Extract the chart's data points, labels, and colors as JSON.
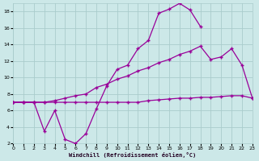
{
  "xlabel": "Windchill (Refroidissement éolien,°C)",
  "bg_color": "#cce8e8",
  "line_color": "#990099",
  "grid_color": "#aacccc",
  "xlim": [
    0,
    23
  ],
  "ylim": [
    2,
    19
  ],
  "xticks": [
    0,
    1,
    2,
    3,
    4,
    5,
    6,
    7,
    8,
    9,
    10,
    11,
    12,
    13,
    14,
    15,
    16,
    17,
    18,
    19,
    20,
    21,
    22,
    23
  ],
  "yticks": [
    2,
    4,
    6,
    8,
    10,
    12,
    14,
    16,
    18
  ],
  "line_upper_x": [
    0,
    1,
    2,
    3,
    4,
    5,
    6,
    7,
    8,
    9,
    10,
    11,
    12,
    13,
    14,
    15,
    16,
    17,
    18
  ],
  "line_upper_y": [
    7.0,
    7.0,
    7.0,
    3.5,
    6.0,
    2.5,
    2.0,
    3.2,
    6.2,
    9.0,
    11.0,
    11.5,
    13.5,
    14.5,
    17.8,
    18.3,
    19.0,
    18.2,
    16.2
  ],
  "line_mid_x": [
    0,
    1,
    2,
    3,
    4,
    5,
    6,
    7,
    8,
    9,
    10,
    11,
    12,
    13,
    14,
    15,
    16,
    17,
    18,
    19,
    20,
    21,
    22,
    23
  ],
  "line_mid_y": [
    7.0,
    7.0,
    7.0,
    7.0,
    7.2,
    7.5,
    7.8,
    8.0,
    8.8,
    9.2,
    9.8,
    10.2,
    10.8,
    11.2,
    11.8,
    12.2,
    12.8,
    13.2,
    13.8,
    12.2,
    12.5,
    13.5,
    11.5,
    7.5
  ],
  "line_lower_x": [
    0,
    1,
    2,
    3,
    4,
    5,
    6,
    7,
    8,
    9,
    10,
    11,
    12,
    13,
    14,
    15,
    16,
    17,
    18,
    19,
    20,
    21,
    22,
    23
  ],
  "line_lower_y": [
    7.0,
    7.0,
    7.0,
    7.0,
    7.0,
    7.0,
    7.0,
    7.0,
    7.0,
    7.0,
    7.0,
    7.0,
    7.0,
    7.2,
    7.3,
    7.4,
    7.5,
    7.5,
    7.6,
    7.6,
    7.7,
    7.8,
    7.8,
    7.5
  ]
}
